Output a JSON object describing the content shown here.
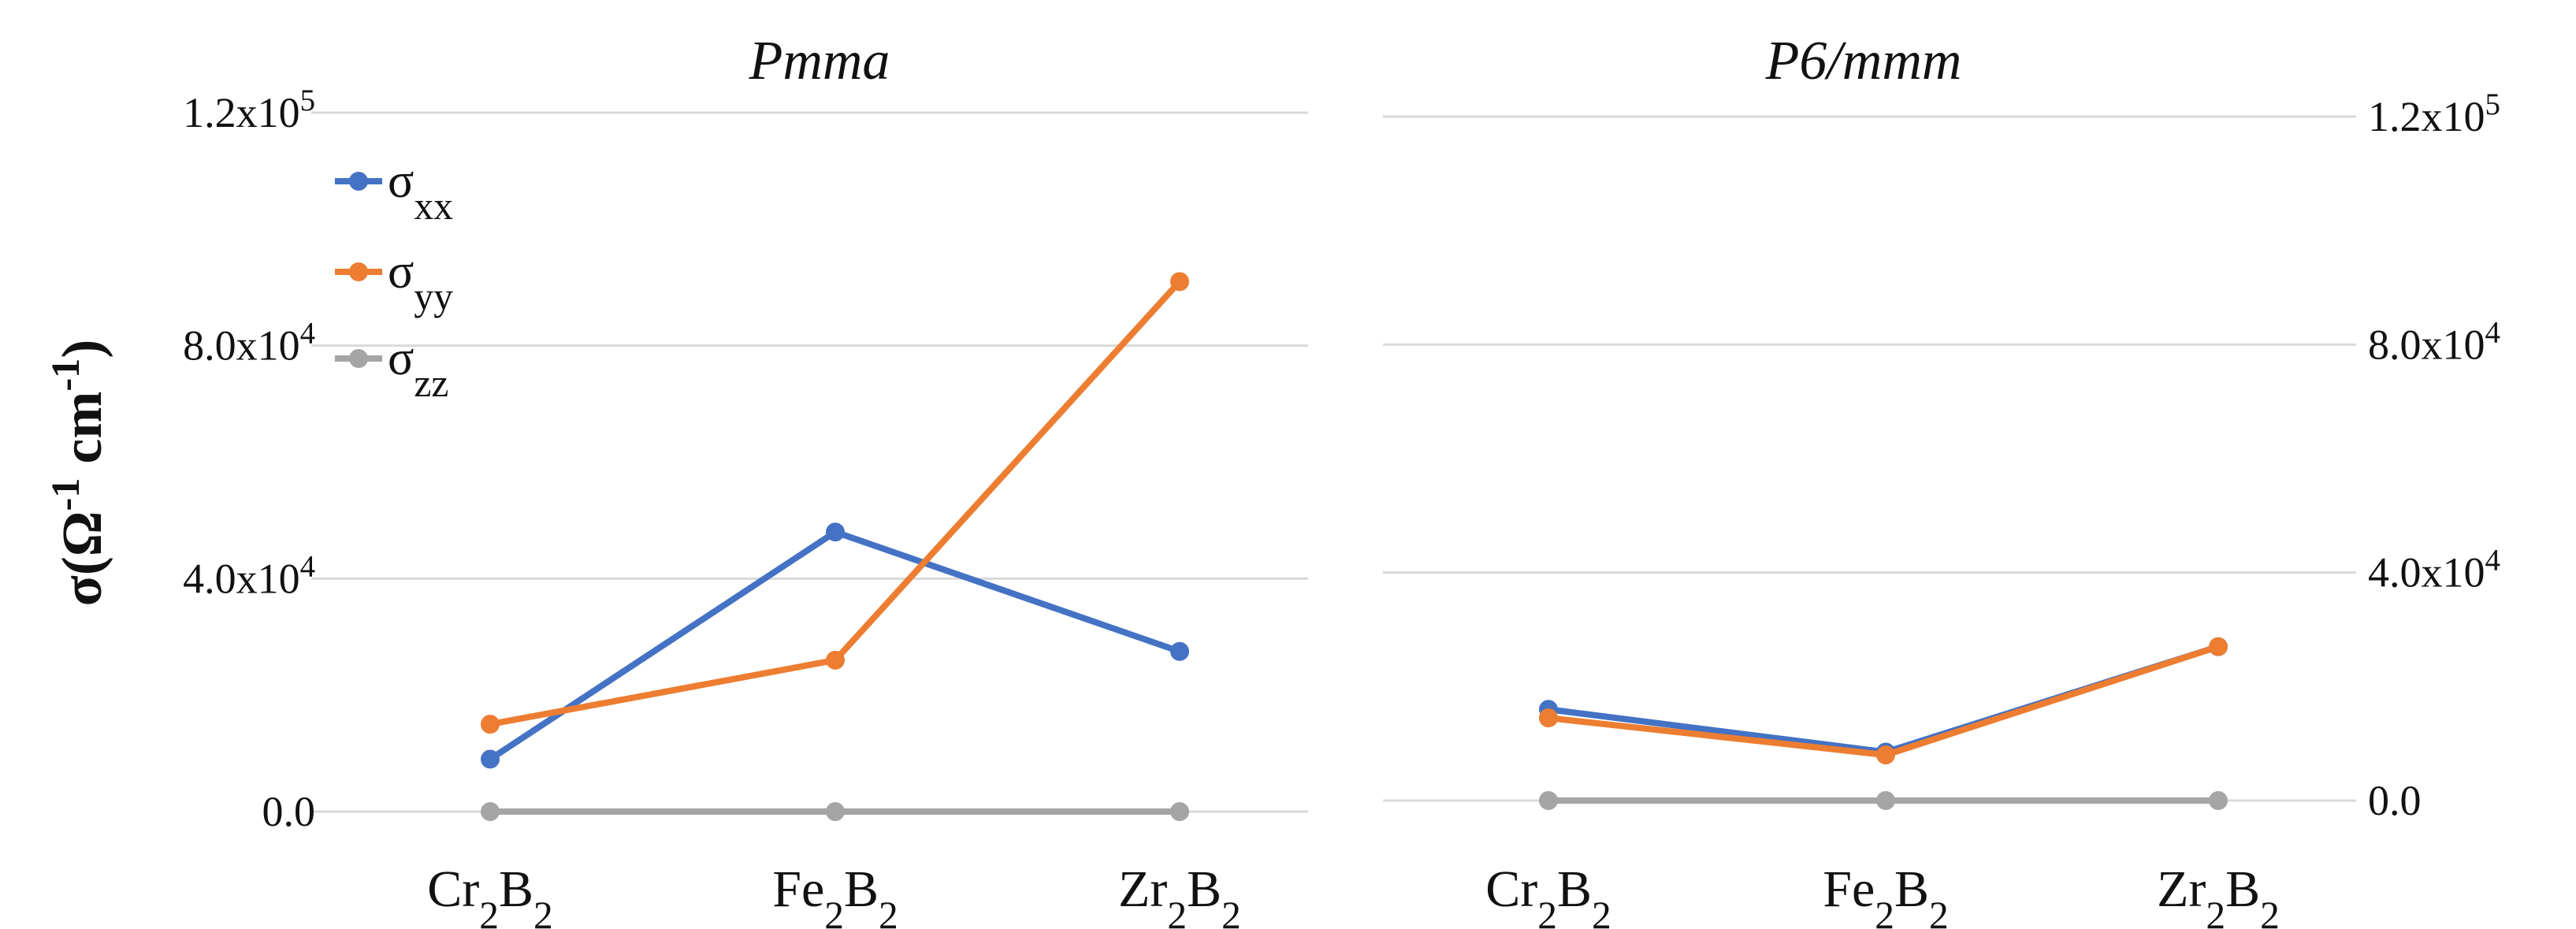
{
  "chart_data": [
    {
      "type": "line",
      "title": "Pmma",
      "categories": [
        "Cr2B2",
        "Fe2B2",
        "Zr2B2"
      ],
      "y_axis_side": "left",
      "ylabel": "σ(Ω-1 cm-1)",
      "ylim": [
        0,
        120000
      ],
      "yticks": [
        {
          "value": 0,
          "label": "0.0"
        },
        {
          "value": 40000,
          "label": "4.0x10",
          "exp": "4"
        },
        {
          "value": 80000,
          "label": "8.0x10",
          "exp": "4"
        },
        {
          "value": 120000,
          "label": "1.2x10",
          "exp": "5"
        }
      ],
      "series": [
        {
          "name": "σxx",
          "values": [
            9000,
            48000,
            27500
          ]
        },
        {
          "name": "σyy",
          "values": [
            15000,
            26000,
            91000
          ]
        },
        {
          "name": "σzz",
          "values": [
            0,
            0,
            0
          ]
        }
      ],
      "legend_position": "top-left"
    },
    {
      "type": "line",
      "title": "P6/mmm",
      "categories": [
        "Cr2B2",
        "Fe2B2",
        "Zr2B2"
      ],
      "y_axis_side": "right",
      "ylim": [
        0,
        120000
      ],
      "yticks": [
        {
          "value": 0,
          "label": "0.0"
        },
        {
          "value": 40000,
          "label": "4.0x10",
          "exp": "4"
        },
        {
          "value": 80000,
          "label": "8.0x10",
          "exp": "4"
        },
        {
          "value": 120000,
          "label": "1.2x10",
          "exp": "5"
        }
      ],
      "series": [
        {
          "name": "σxx",
          "values": [
            16000,
            8500,
            27000
          ]
        },
        {
          "name": "σyy",
          "values": [
            14500,
            8000,
            27000
          ]
        },
        {
          "name": "σzz",
          "values": [
            0,
            0,
            0
          ]
        }
      ]
    }
  ],
  "colors": {
    "xx": "#4472C4",
    "yy": "#ED7D31",
    "zz": "#A5A5A5",
    "grid": "#D9D9D9",
    "text": "#111111"
  }
}
